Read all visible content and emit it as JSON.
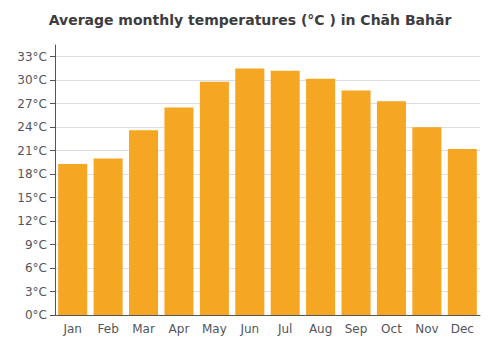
{
  "chart_data": {
    "type": "bar",
    "title": "Average monthly temperatures (°C ) in Chāh Bahār",
    "categories": [
      "Jan",
      "Feb",
      "Mar",
      "Apr",
      "May",
      "Jun",
      "Jul",
      "Aug",
      "Sep",
      "Oct",
      "Nov",
      "Dec"
    ],
    "values": [
      19.3,
      20.0,
      23.6,
      26.5,
      29.8,
      31.5,
      31.2,
      30.2,
      28.7,
      27.3,
      24.0,
      21.2
    ],
    "color": "#F5A623",
    "ylim": [
      0,
      34.5
    ],
    "yticks": [
      {
        "value": 0,
        "label": "0°C"
      },
      {
        "value": 3,
        "label": "3°C"
      },
      {
        "value": 6,
        "label": "6°C"
      },
      {
        "value": 9,
        "label": "9°C"
      },
      {
        "value": 12,
        "label": "12°C"
      },
      {
        "value": 15,
        "label": "15°C"
      },
      {
        "value": 18,
        "label": "18°C"
      },
      {
        "value": 21,
        "label": "21°C"
      },
      {
        "value": 24,
        "label": "24°C"
      },
      {
        "value": 27,
        "label": "27°C"
      },
      {
        "value": 30,
        "label": "30°C"
      },
      {
        "value": 33,
        "label": "33°C"
      }
    ],
    "grid": true
  }
}
